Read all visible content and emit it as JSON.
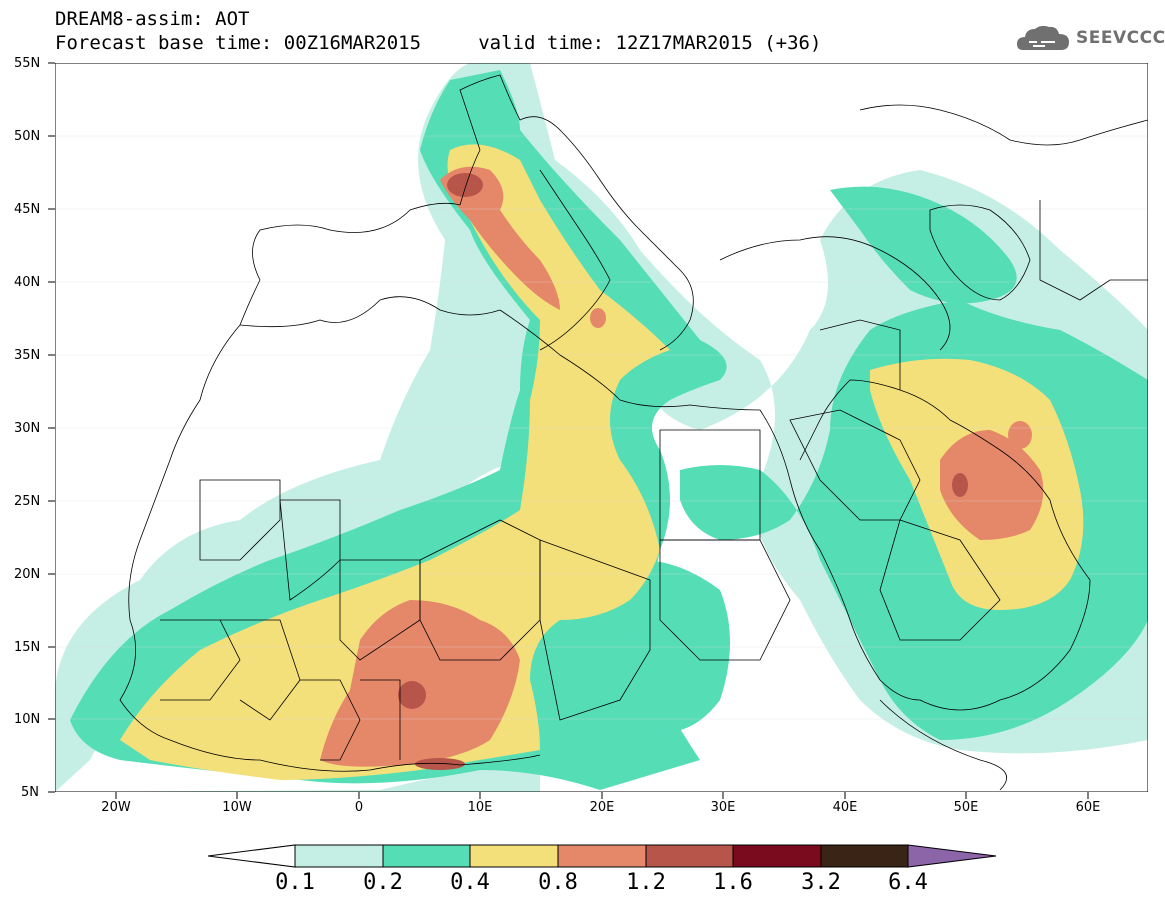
{
  "header": {
    "title_line1": "DREAM8-assim: AOT",
    "title_line2": "Forecast base time: 00Z16MAR2015     valid time: 12Z17MAR2015 (+36)",
    "logo_text": "SEEVCCC",
    "logo_icon": "cloud-icon"
  },
  "map": {
    "variable": "AOT",
    "model": "DREAM8-assim",
    "latitude_labels": [
      "55N",
      "50N",
      "45N",
      "40N",
      "35N",
      "30N",
      "25N",
      "20N",
      "15N",
      "10N",
      "5N"
    ],
    "longitude_labels": [
      "20W",
      "10W",
      "0",
      "10E",
      "20E",
      "30E",
      "40E",
      "50E",
      "60E"
    ]
  },
  "colorbar": {
    "labels": [
      "0.1",
      "0.2",
      "0.4",
      "0.8",
      "1.2",
      "1.6",
      "3.2",
      "6.4"
    ],
    "colors": [
      "#ffffff",
      "#c5efe5",
      "#55ddb6",
      "#f4e07a",
      "#e5886a",
      "#b8554a",
      "#7a0a1e",
      "#3a2416",
      "#8c64a8"
    ]
  }
}
